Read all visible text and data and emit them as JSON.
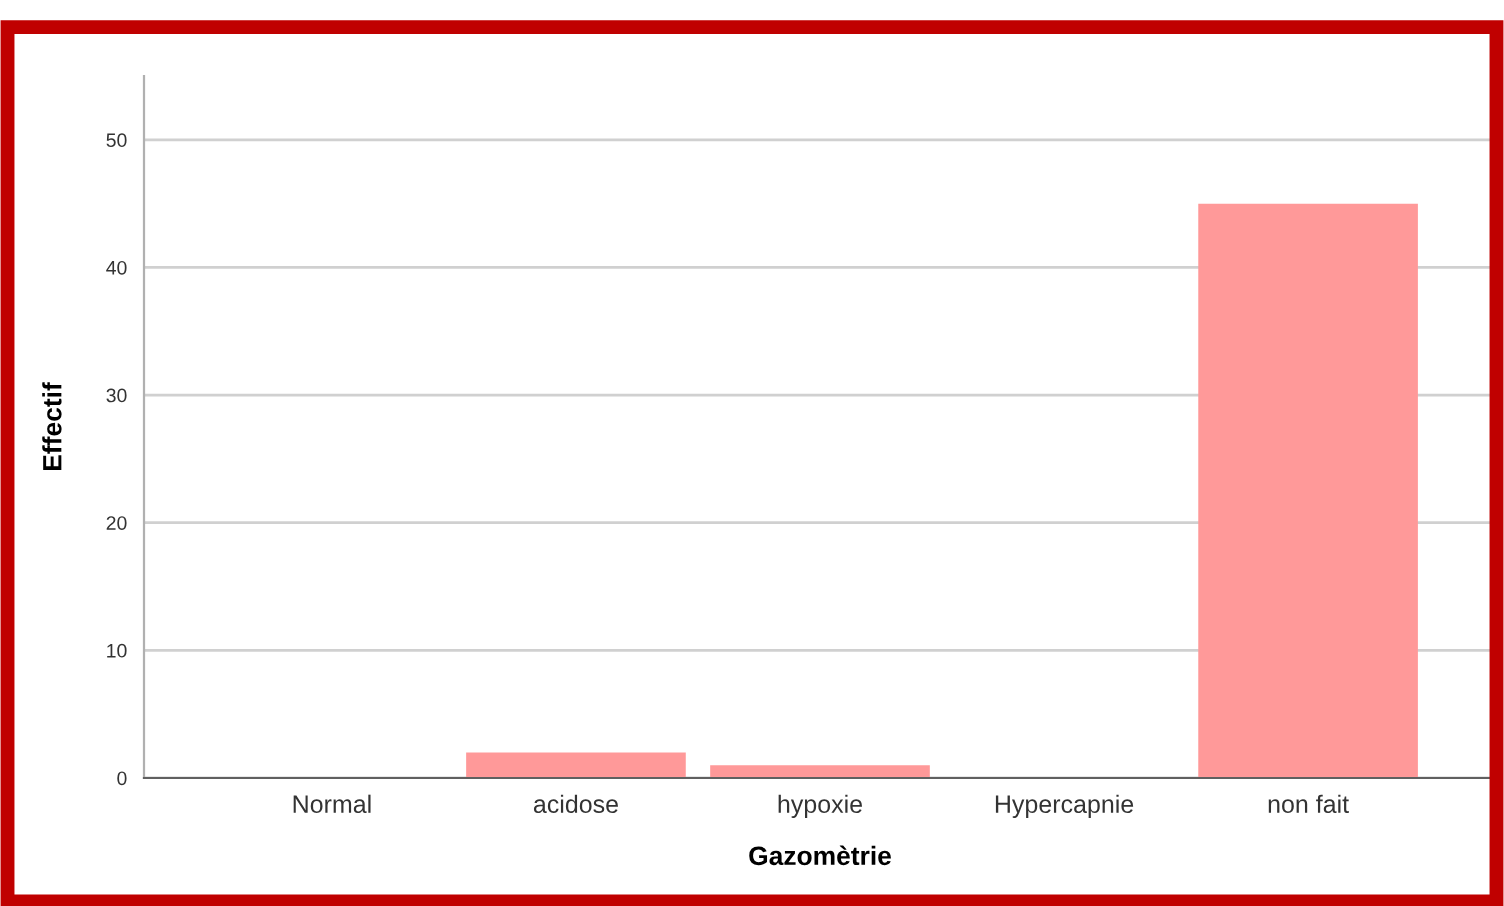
{
  "chart_data": {
    "type": "bar",
    "xlabel": "Gazomètrie",
    "ylabel": "Effectif",
    "categories": [
      "Normal",
      "acidose",
      "hypoxie",
      "Hypercapnie",
      "non fait"
    ],
    "values": [
      0,
      2,
      1,
      0,
      45
    ],
    "color": "#ff9999",
    "ylim": [
      0,
      55
    ],
    "yticks": [
      0,
      10,
      20,
      30,
      40,
      50
    ],
    "grid": "y"
  }
}
